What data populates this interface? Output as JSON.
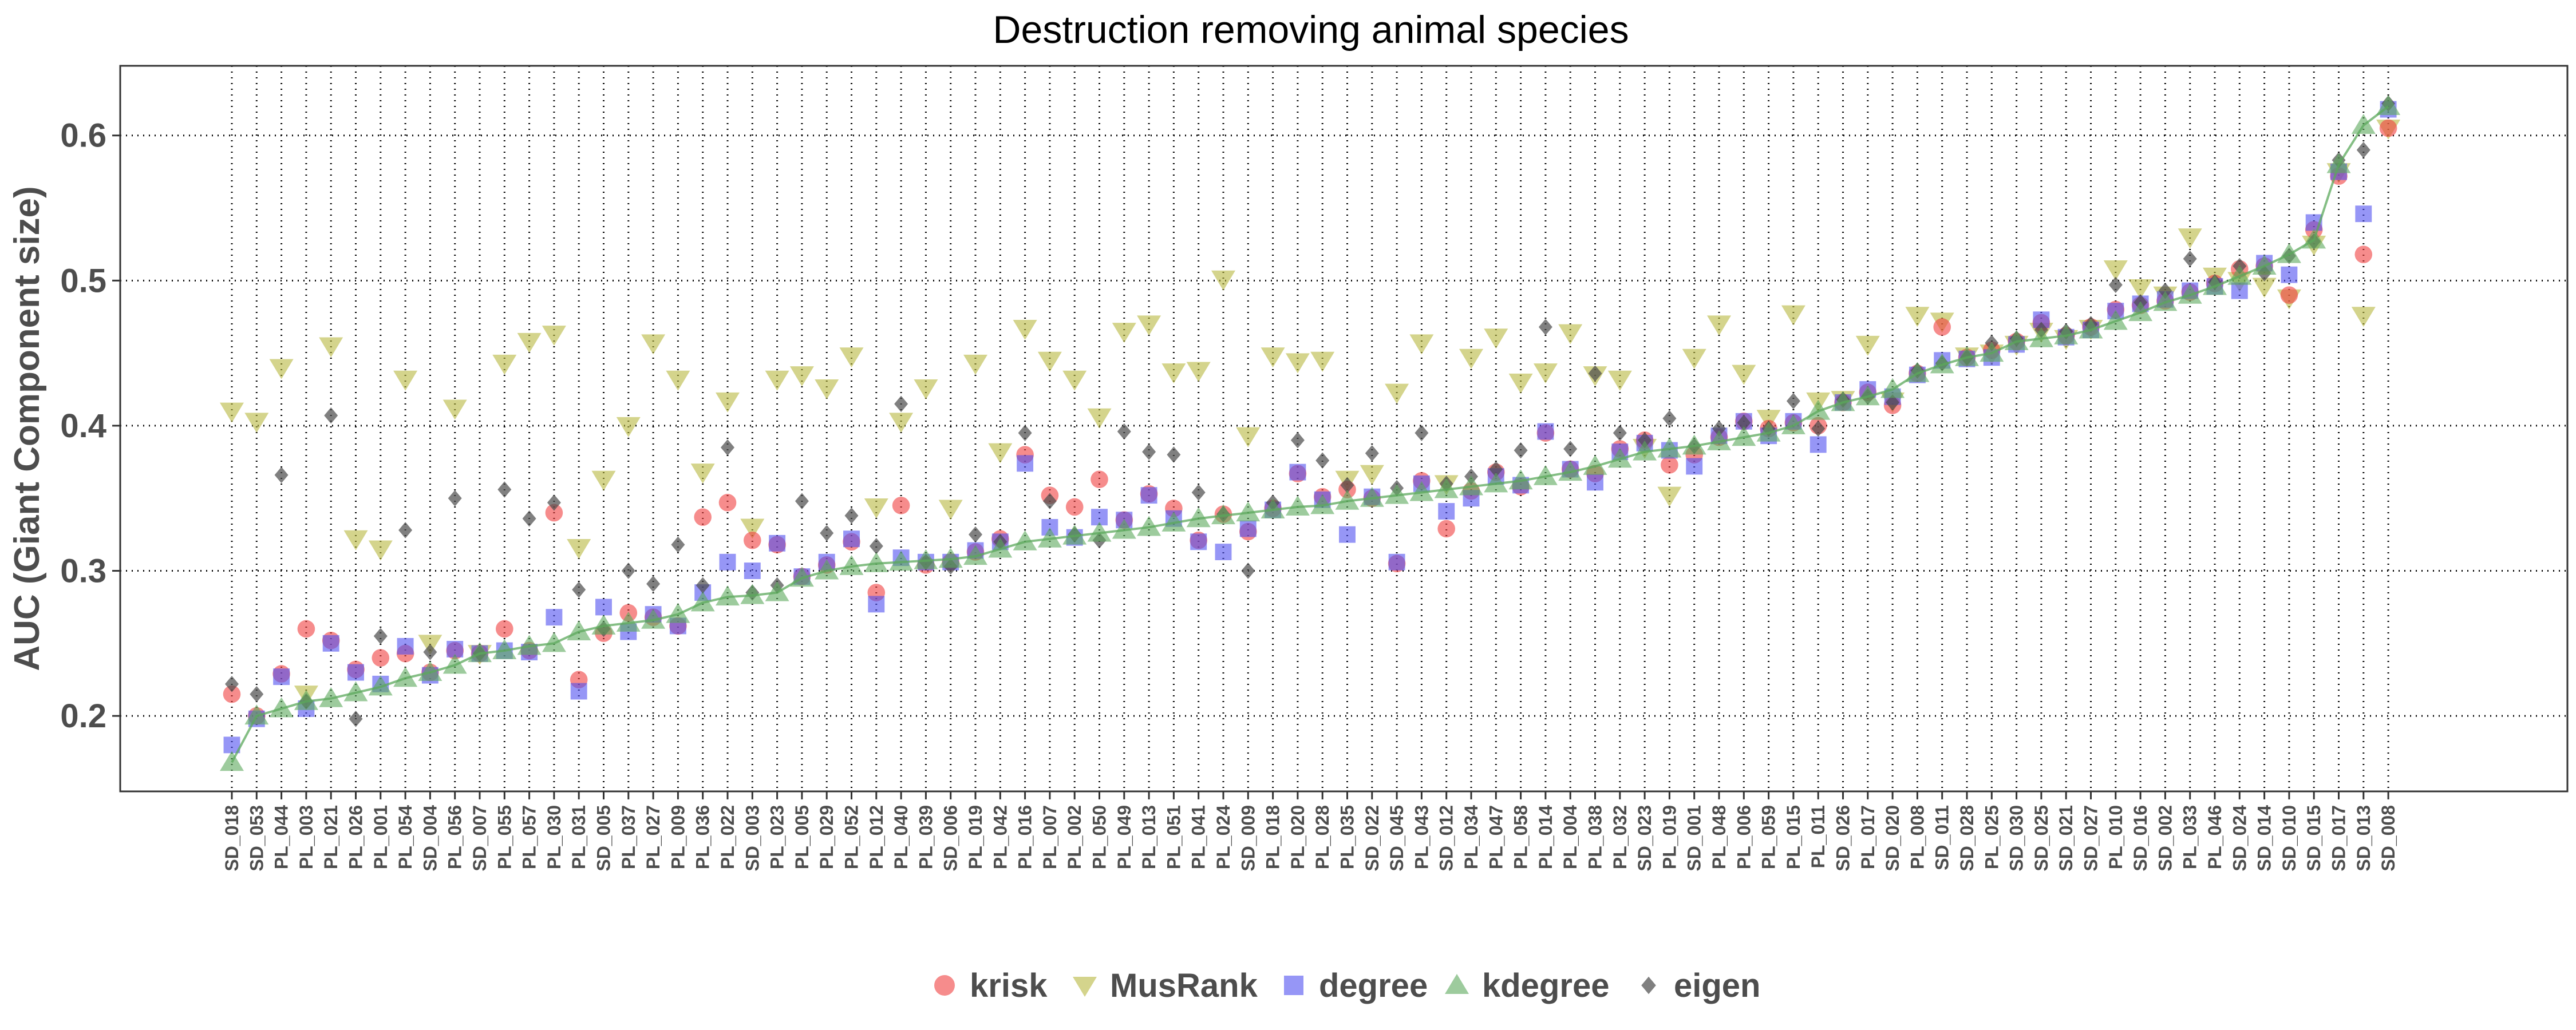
{
  "chart_data": {
    "type": "scatter",
    "title": "Destruction removing animal species",
    "xlabel": "",
    "ylabel": "AUC (Giant Component size)",
    "ylim": [
      0.148,
      0.648
    ],
    "yticks": [
      0.2,
      0.3,
      0.4,
      0.5,
      0.6
    ],
    "ytick_labels": [
      "0.2",
      "0.3",
      "0.4",
      "0.5",
      "0.6"
    ],
    "grid": "dotted",
    "legend_position": "bottom",
    "categories": [
      "SD_018",
      "SD_053",
      "PL_044",
      "PL_003",
      "PL_021",
      "PL_026",
      "PL_001",
      "PL_054",
      "SD_004",
      "PL_056",
      "SD_007",
      "PL_055",
      "PL_057",
      "PL_030",
      "PL_031",
      "SD_005",
      "PL_037",
      "PL_027",
      "PL_009",
      "PL_036",
      "PL_022",
      "SD_003",
      "PL_023",
      "PL_005",
      "PL_029",
      "PL_052",
      "PL_012",
      "PL_040",
      "PL_039",
      "SD_006",
      "PL_019",
      "PL_042",
      "PL_016",
      "PL_007",
      "PL_002",
      "PL_050",
      "PL_049",
      "PL_013",
      "PL_051",
      "PL_041",
      "PL_024",
      "SD_009",
      "PL_018",
      "PL_020",
      "PL_028",
      "PL_035",
      "SD_022",
      "SD_045",
      "PL_043",
      "SD_012",
      "PL_034",
      "PL_047",
      "PL_058",
      "PL_014",
      "PL_004",
      "PL_038",
      "PL_032",
      "SD_023",
      "PL_019",
      "SD_001",
      "PL_048",
      "PL_006",
      "PL_059",
      "PL_015",
      "PL_011",
      "SD_026",
      "PL_017",
      "SD_020",
      "PL_008",
      "SD_011",
      "SD_028",
      "PL_025",
      "SD_030",
      "SD_025",
      "SD_021",
      "SD_027",
      "PL_010",
      "SD_016",
      "SD_002",
      "PL_033",
      "PL_046",
      "SD_024",
      "SD_014",
      "SD_010",
      "SD_015",
      "SD_017",
      "SD_013",
      "SD_008"
    ],
    "series": [
      {
        "name": "krisk",
        "color": "#f04040",
        "shape": "circle",
        "values": [
          0.215,
          0.2,
          0.229,
          0.26,
          0.252,
          0.232,
          0.24,
          0.243,
          0.23,
          0.245,
          0.243,
          0.26,
          0.245,
          0.34,
          0.225,
          0.257,
          0.271,
          0.268,
          0.262,
          0.337,
          0.347,
          0.321,
          0.318,
          0.296,
          0.304,
          0.32,
          0.285,
          0.345,
          0.304,
          0.306,
          0.313,
          0.322,
          0.38,
          0.352,
          0.344,
          0.363,
          0.335,
          0.353,
          0.343,
          0.321,
          0.339,
          0.327,
          0.343,
          0.367,
          0.351,
          0.356,
          0.35,
          0.305,
          0.362,
          0.329,
          0.355,
          0.368,
          0.358,
          0.395,
          0.37,
          0.367,
          0.384,
          0.39,
          0.373,
          0.38,
          0.392,
          0.403,
          0.398,
          0.402,
          0.4,
          0.416,
          0.423,
          0.414,
          0.436,
          0.468,
          0.447,
          0.452,
          0.458,
          0.471,
          0.462,
          0.468,
          0.48,
          0.483,
          0.486,
          0.492,
          0.498,
          0.508,
          0.51,
          0.49,
          0.535,
          0.572,
          0.518,
          0.605
        ]
      },
      {
        "name": "MusRank",
        "color": "#b8b840",
        "shape": "triangle-down",
        "values": [
          0.41,
          0.403,
          0.44,
          0.215,
          0.455,
          0.322,
          0.315,
          0.432,
          0.25,
          0.412,
          0.243,
          0.443,
          0.458,
          0.463,
          0.316,
          0.363,
          0.4,
          0.457,
          0.432,
          0.368,
          0.417,
          0.33,
          0.432,
          0.435,
          0.426,
          0.448,
          0.344,
          0.403,
          0.426,
          0.343,
          0.443,
          0.382,
          0.467,
          0.445,
          0.432,
          0.406,
          0.465,
          0.47,
          0.437,
          0.438,
          0.501,
          0.393,
          0.448,
          0.444,
          0.445,
          0.363,
          0.367,
          0.423,
          0.457,
          0.36,
          0.447,
          0.461,
          0.43,
          0.437,
          0.464,
          0.435,
          0.432,
          0.385,
          0.352,
          0.447,
          0.47,
          0.436,
          0.405,
          0.477,
          0.417,
          0.418,
          0.456,
          0.417,
          0.476,
          0.472,
          0.448,
          0.45,
          0.456,
          0.465,
          0.46,
          0.467,
          0.508,
          0.495,
          0.49,
          0.53,
          0.503,
          0.5,
          0.496,
          0.488,
          0.525,
          0.575,
          0.476,
          0.605
        ]
      },
      {
        "name": "degree",
        "color": "#5050f0",
        "shape": "square",
        "values": [
          0.18,
          0.198,
          0.227,
          0.205,
          0.25,
          0.23,
          0.222,
          0.248,
          0.228,
          0.246,
          0.243,
          0.245,
          0.244,
          0.268,
          0.217,
          0.275,
          0.258,
          0.27,
          0.262,
          0.285,
          0.306,
          0.3,
          0.319,
          0.296,
          0.306,
          0.322,
          0.277,
          0.309,
          0.306,
          0.306,
          0.314,
          0.32,
          0.374,
          0.33,
          0.323,
          0.337,
          0.335,
          0.352,
          0.336,
          0.32,
          0.313,
          0.329,
          0.342,
          0.368,
          0.349,
          0.325,
          0.351,
          0.306,
          0.36,
          0.341,
          0.35,
          0.365,
          0.359,
          0.396,
          0.37,
          0.361,
          0.382,
          0.388,
          0.383,
          0.372,
          0.393,
          0.403,
          0.393,
          0.403,
          0.387,
          0.416,
          0.425,
          0.42,
          0.435,
          0.445,
          0.446,
          0.447,
          0.456,
          0.473,
          0.461,
          0.466,
          0.479,
          0.484,
          0.487,
          0.493,
          0.496,
          0.493,
          0.512,
          0.504,
          0.54,
          0.575,
          0.546,
          0.618
        ]
      },
      {
        "name": "kdegree",
        "color": "#5ba85b",
        "shape": "triangle-up",
        "values": [
          0.168,
          0.2,
          0.205,
          0.21,
          0.212,
          0.216,
          0.22,
          0.226,
          0.23,
          0.235,
          0.243,
          0.245,
          0.248,
          0.25,
          0.258,
          0.262,
          0.264,
          0.266,
          0.27,
          0.278,
          0.282,
          0.283,
          0.285,
          0.295,
          0.3,
          0.303,
          0.305,
          0.306,
          0.307,
          0.308,
          0.31,
          0.315,
          0.32,
          0.322,
          0.324,
          0.326,
          0.328,
          0.33,
          0.333,
          0.336,
          0.338,
          0.34,
          0.342,
          0.344,
          0.345,
          0.348,
          0.35,
          0.352,
          0.354,
          0.356,
          0.358,
          0.36,
          0.362,
          0.365,
          0.368,
          0.372,
          0.377,
          0.382,
          0.384,
          0.386,
          0.389,
          0.392,
          0.395,
          0.4,
          0.41,
          0.416,
          0.42,
          0.425,
          0.436,
          0.442,
          0.447,
          0.45,
          0.458,
          0.46,
          0.462,
          0.466,
          0.472,
          0.478,
          0.485,
          0.49,
          0.496,
          0.503,
          0.51,
          0.518,
          0.528,
          0.58,
          0.607,
          0.62
        ]
      },
      {
        "name": "eigen",
        "color": "#4a4a4a",
        "shape": "diamond",
        "values": [
          0.222,
          0.215,
          0.366,
          0.21,
          0.407,
          0.198,
          0.255,
          0.328,
          0.244,
          0.35,
          0.243,
          0.356,
          0.336,
          0.347,
          0.287,
          0.26,
          0.3,
          0.291,
          0.318,
          0.29,
          0.385,
          0.285,
          0.29,
          0.348,
          0.326,
          0.338,
          0.317,
          0.415,
          0.306,
          0.303,
          0.325,
          0.32,
          0.395,
          0.348,
          0.325,
          0.321,
          0.396,
          0.382,
          0.38,
          0.354,
          0.339,
          0.3,
          0.347,
          0.39,
          0.376,
          0.359,
          0.381,
          0.357,
          0.395,
          0.36,
          0.365,
          0.37,
          0.383,
          0.468,
          0.384,
          0.436,
          0.395,
          0.39,
          0.405,
          0.386,
          0.398,
          0.402,
          0.398,
          0.417,
          0.398,
          0.418,
          0.42,
          0.416,
          0.438,
          0.443,
          0.447,
          0.457,
          0.46,
          0.466,
          0.465,
          0.47,
          0.497,
          0.485,
          0.493,
          0.515,
          0.499,
          0.51,
          0.505,
          0.517,
          0.527,
          0.583,
          0.59,
          0.622
        ]
      }
    ]
  }
}
